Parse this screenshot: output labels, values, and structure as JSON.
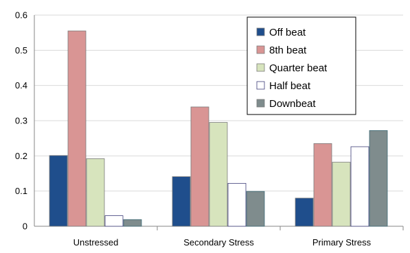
{
  "chart_data": {
    "type": "bar",
    "title": "",
    "xlabel": "",
    "ylabel": "",
    "ylim": [
      0,
      0.6
    ],
    "yticks": [
      0,
      0.1,
      0.2,
      0.3,
      0.4,
      0.5,
      0.6
    ],
    "grid": true,
    "legend_position": "top-right",
    "categories": [
      "Unstressed",
      "Secondary Stress",
      "Primary Stress"
    ],
    "series": [
      {
        "name": "Off beat",
        "color": "#1f4e8c",
        "values": [
          0.201,
          0.141,
          0.08
        ]
      },
      {
        "name": "8th beat",
        "color": "#d99594",
        "values": [
          0.555,
          0.339,
          0.235
        ]
      },
      {
        "name": "Quarter beat",
        "color": "#d7e4bd",
        "values": [
          0.192,
          0.295,
          0.182
        ]
      },
      {
        "name": "Half beat",
        "color": "#ffffff",
        "values": [
          0.03,
          0.122,
          0.226
        ]
      },
      {
        "name": "Downbeat",
        "color": "#7f8c8d",
        "values": [
          0.019,
          0.099,
          0.272
        ]
      }
    ]
  }
}
